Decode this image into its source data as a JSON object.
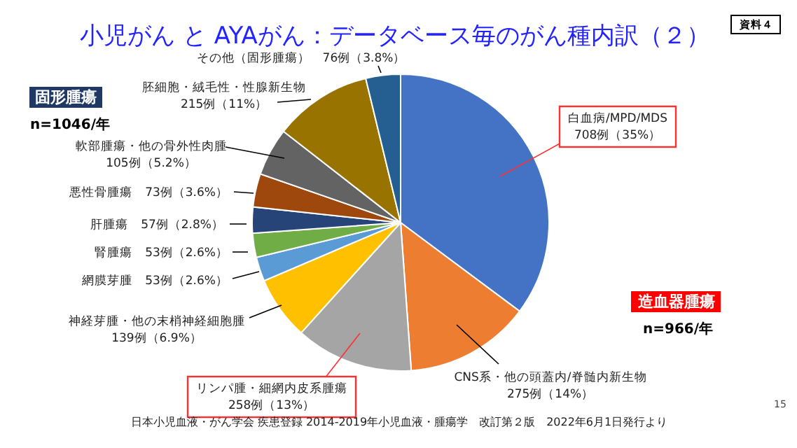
{
  "chart_data": {
    "type": "pie",
    "title": "小児がん と AYAがん：データベース毎のがん種内訳（２）",
    "categories": [
      "白血病/MPD/MDS",
      "CNS系・他の頭蓋内/脊髄内新生物",
      "リンパ腫・細網内皮系腫瘍",
      "神経芽腫・他の末梢神経細胞腫",
      "網膜芽腫",
      "腎腫瘍",
      "肝腫瘍",
      "悪性骨腫瘍",
      "軟部腫瘍・他の骨外性肉腫",
      "胚細胞・絨毛性・性腺新生物",
      "その他（固形腫瘍）"
    ],
    "values": [
      708,
      275,
      258,
      139,
      53,
      53,
      57,
      73,
      105,
      215,
      76
    ],
    "value_labels": [
      "708例（35%）",
      "275例（14%）",
      "258例（13%）",
      "139例（6.9%）",
      "53例（2.6%）",
      "53例（2.6%）",
      "57例（2.8%）",
      "73例（3.6%）",
      "105例（5.2%）",
      "215例（11%）",
      "76例（3.8%）"
    ],
    "colors": [
      "#4472c4",
      "#ed7d31",
      "#a5a5a5",
      "#ffc000",
      "#5b9bd5",
      "#70ad47",
      "#264478",
      "#9e480e",
      "#636363",
      "#997300",
      "#255e91"
    ],
    "annotations": [
      "資料４",
      "固形腫瘍",
      "n=1046/年",
      "造血器腫瘍",
      "n=966/年",
      "日本小児血液・がん学会 疾患登録 2014-2019年小児血液・腫瘍学　改訂第２版　2022年6月1日発行より",
      "15"
    ]
  }
}
